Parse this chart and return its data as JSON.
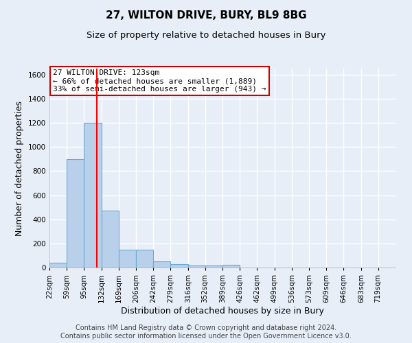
{
  "title": "27, WILTON DRIVE, BURY, BL9 8BG",
  "subtitle": "Size of property relative to detached houses in Bury",
  "xlabel": "Distribution of detached houses by size in Bury",
  "ylabel": "Number of detached properties",
  "footer_line1": "Contains HM Land Registry data © Crown copyright and database right 2024.",
  "footer_line2": "Contains public sector information licensed under the Open Government Licence v3.0.",
  "annotation_line1": "27 WILTON DRIVE: 123sqm",
  "annotation_line2": "← 66% of detached houses are smaller (1,889)",
  "annotation_line3": "33% of semi-detached houses are larger (943) →",
  "bar_edges": [
    22,
    59,
    95,
    132,
    169,
    206,
    242,
    279,
    316,
    352,
    389,
    426,
    462,
    499,
    536,
    573,
    609,
    646,
    683,
    719,
    756
  ],
  "bar_heights": [
    40,
    900,
    1200,
    470,
    150,
    150,
    50,
    30,
    15,
    15,
    20,
    0,
    0,
    0,
    0,
    0,
    0,
    0,
    0,
    0
  ],
  "bar_color": "#b8d0ea",
  "bar_edge_color": "#6aaad4",
  "red_line_x": 123,
  "ylim": [
    0,
    1650
  ],
  "yticks": [
    0,
    200,
    400,
    600,
    800,
    1000,
    1200,
    1400,
    1600
  ],
  "bg_color": "#e8eef8",
  "plot_bg_color": "#e8eef8",
  "grid_color": "#ffffff",
  "annotation_box_color": "#ffffff",
  "annotation_box_edge": "#cc0000",
  "title_fontsize": 11,
  "subtitle_fontsize": 9.5,
  "axis_label_fontsize": 9,
  "tick_fontsize": 7.5,
  "footer_fontsize": 7,
  "annotation_fontsize": 8
}
